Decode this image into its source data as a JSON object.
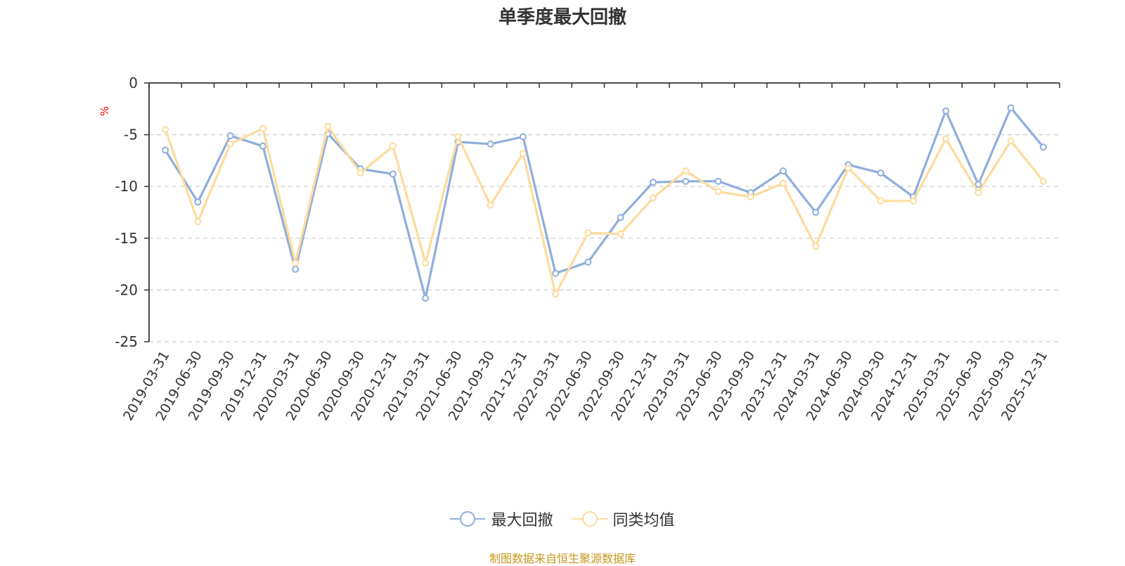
{
  "chart_data": {
    "type": "line",
    "title": "单季度最大回撤",
    "ylabel": "%",
    "ylim": [
      -25,
      0
    ],
    "yticks": [
      0,
      -5,
      -10,
      -15,
      -20,
      -25
    ],
    "grid": true,
    "legend_position": "bottom",
    "categories": [
      "2019-03-31",
      "2019-06-30",
      "2019-09-30",
      "2019-12-31",
      "2020-03-31",
      "2020-06-30",
      "2020-09-30",
      "2020-12-31",
      "2021-03-31",
      "2021-06-30",
      "2021-09-30",
      "2021-12-31",
      "2022-03-31",
      "2022-06-30",
      "2022-09-30",
      "2022-12-31",
      "2023-03-31",
      "2023-06-30",
      "2023-09-30",
      "2023-12-31",
      "2024-03-31",
      "2024-06-30",
      "2024-09-30",
      "2024-12-31",
      "2025-03-31",
      "2025-06-30",
      "2025-09-30",
      "2025-12-31"
    ],
    "series": [
      {
        "name": "最大回撤",
        "color": "#8eaedc",
        "values": [
          -6.5,
          -11.5,
          -5.1,
          -6.1,
          -18.0,
          -4.9,
          -8.3,
          -8.8,
          -20.8,
          -5.7,
          -5.9,
          -5.2,
          -18.4,
          -17.3,
          -13.0,
          -9.6,
          -9.5,
          -9.5,
          -10.6,
          -8.5,
          -12.5,
          -7.9,
          -8.7,
          -11.0,
          -2.7,
          -9.8,
          -2.4,
          -6.2
        ]
      },
      {
        "name": "同类均值",
        "color": "#fddb9c",
        "values": [
          -4.5,
          -13.4,
          -5.9,
          -4.4,
          -17.4,
          -4.2,
          -8.7,
          -6.1,
          -17.4,
          -5.2,
          -11.8,
          -6.8,
          -20.4,
          -14.5,
          -14.6,
          -11.1,
          -8.5,
          -10.5,
          -11.0,
          -9.7,
          -15.8,
          -8.2,
          -11.4,
          -11.4,
          -5.4,
          -10.6,
          -5.6,
          -9.5
        ]
      }
    ]
  },
  "axis_colors": {
    "axis": "#333333",
    "grid": "#cccccc",
    "unit": "#ff0000"
  },
  "source_text": "制图数据来自恒生聚源数据库",
  "source_color": "#c8961e"
}
